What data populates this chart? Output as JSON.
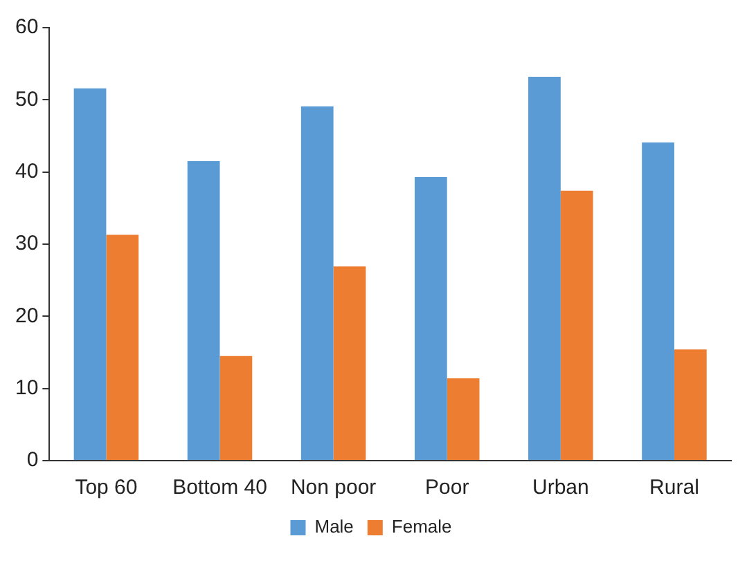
{
  "chart_data": {
    "type": "bar",
    "categories": [
      "Top 60",
      "Bottom 40",
      "Non poor",
      "Poor",
      "Urban",
      "Rural"
    ],
    "series": [
      {
        "name": "Male",
        "color": "#5b9bd5",
        "values": [
          51.6,
          41.5,
          49.1,
          39.3,
          53.2,
          44.1
        ]
      },
      {
        "name": "Female",
        "color": "#ed7d31",
        "values": [
          31.3,
          14.5,
          26.9,
          11.4,
          37.4,
          15.4
        ]
      }
    ],
    "ylim": [
      0,
      60
    ],
    "yticks": [
      0,
      10,
      20,
      30,
      40,
      50,
      60
    ],
    "grid": false,
    "legend": "bottom"
  }
}
